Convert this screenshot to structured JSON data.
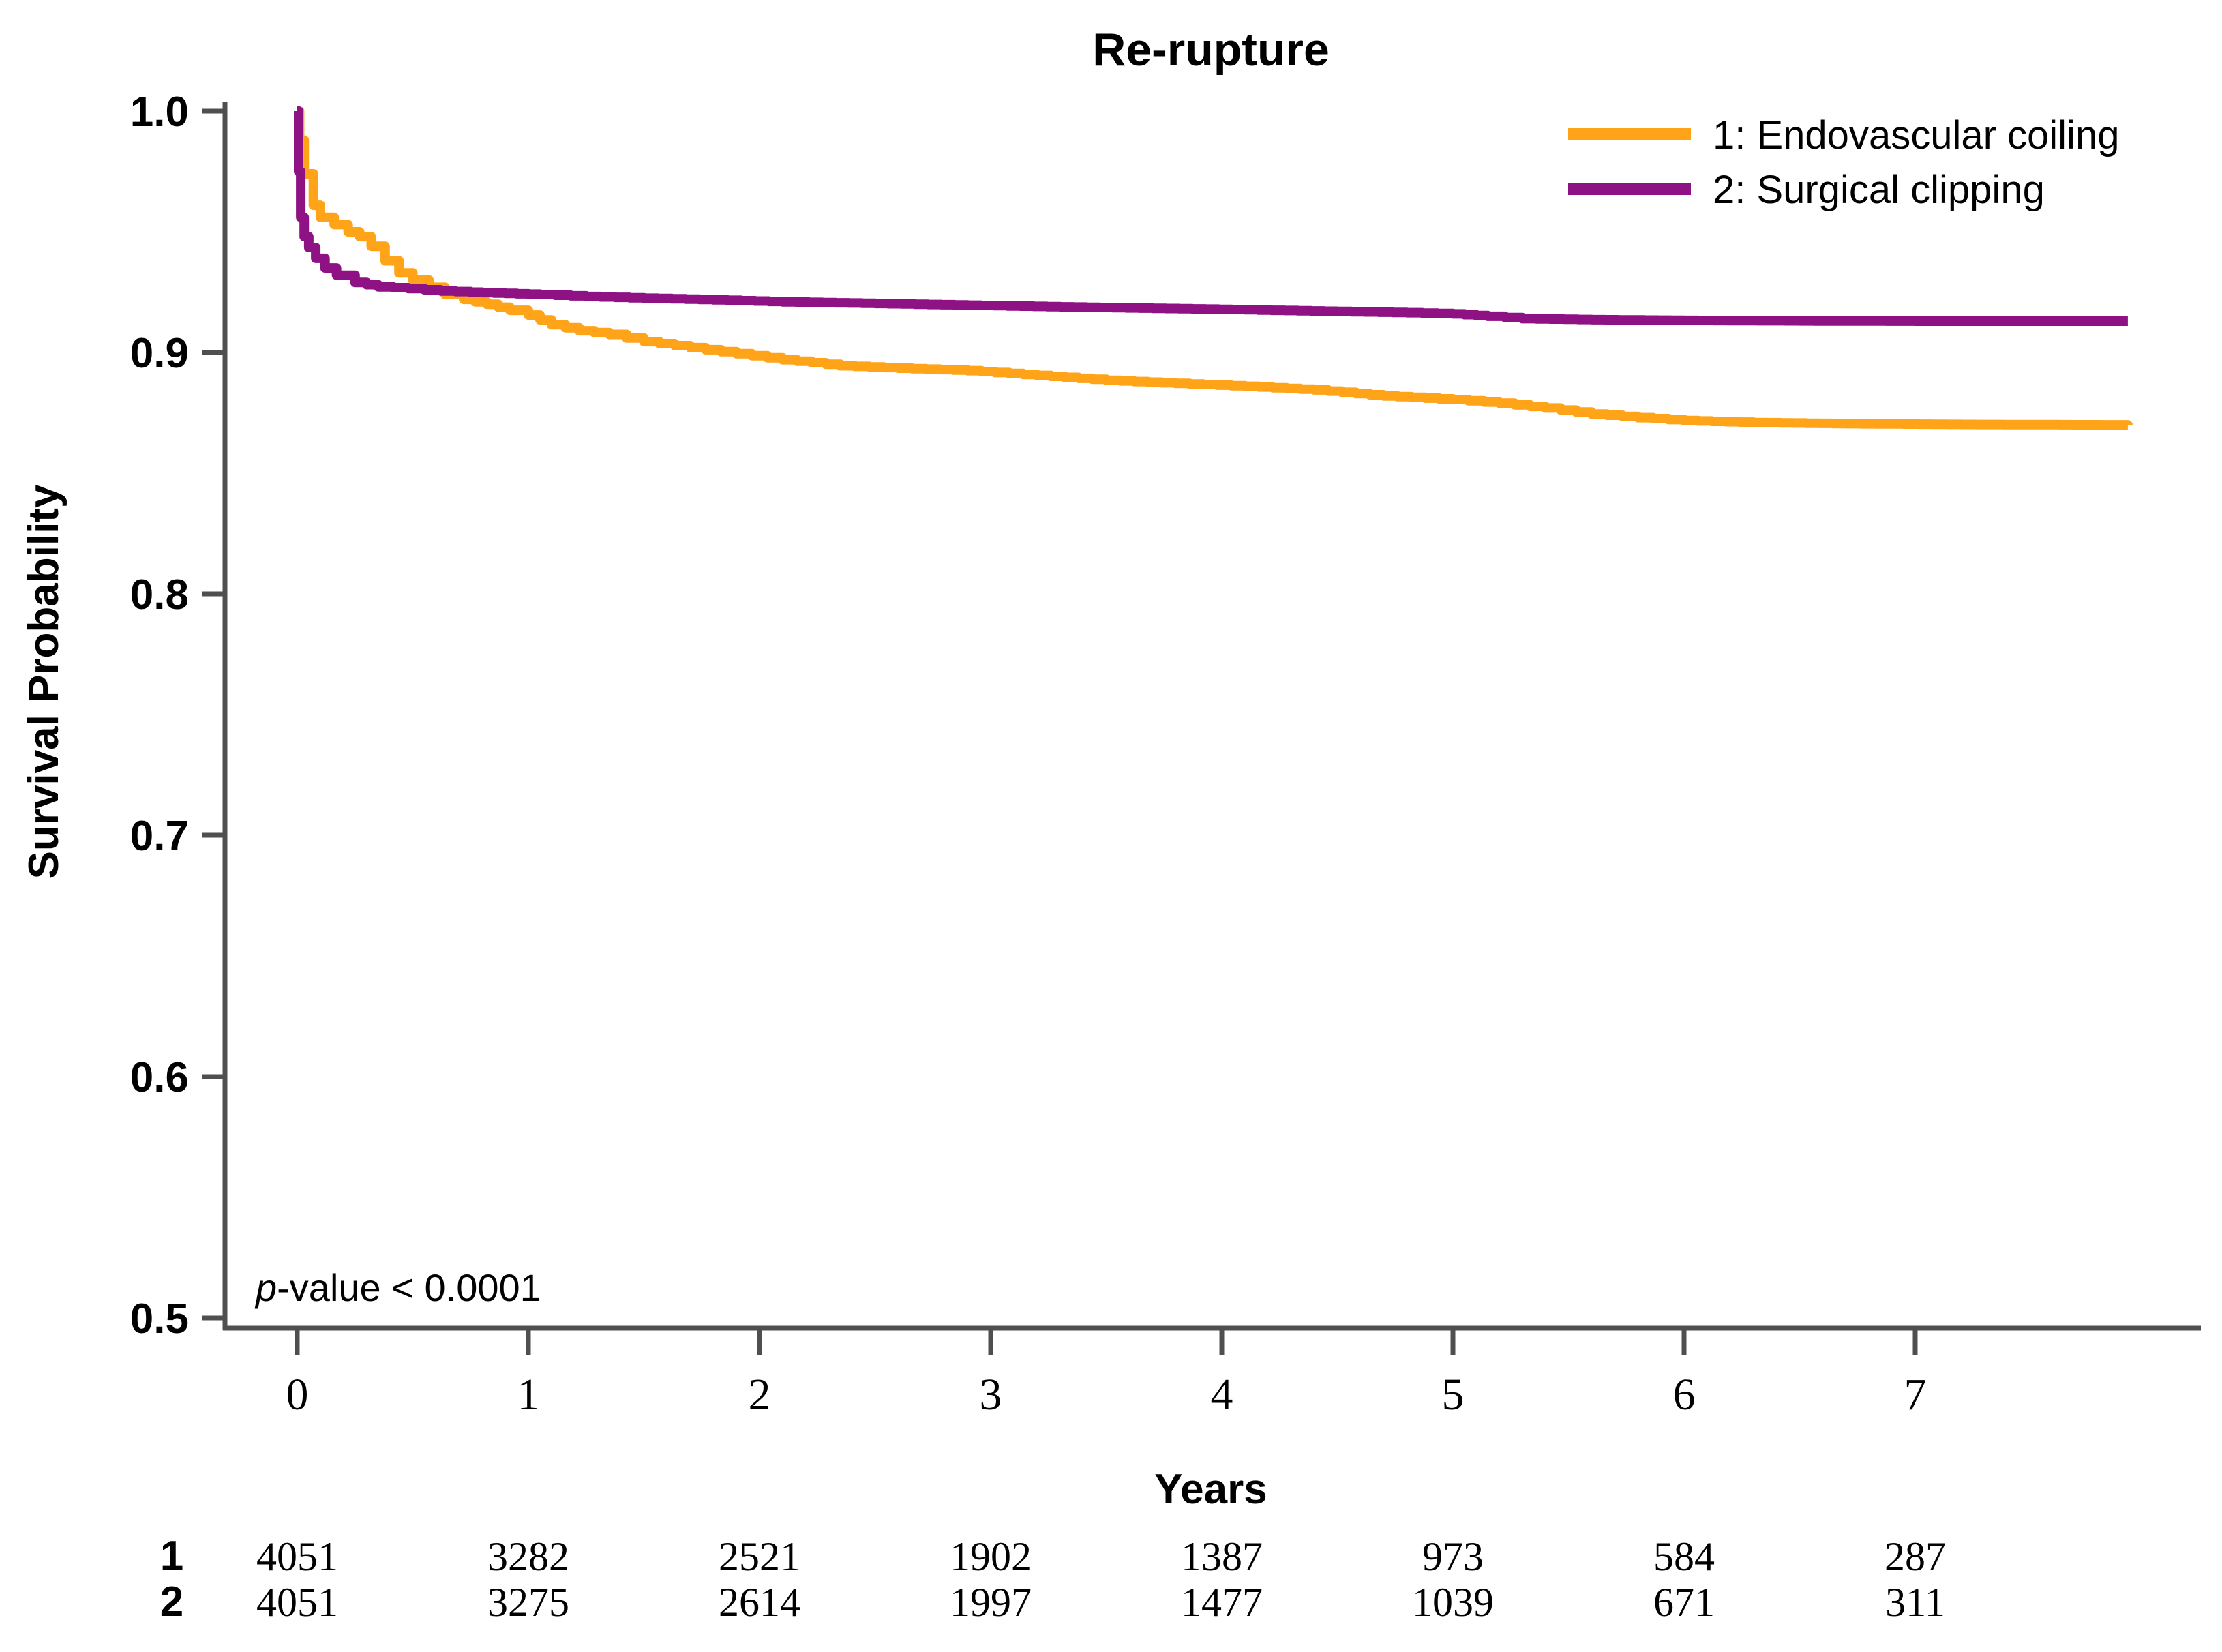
{
  "title": "Re-rupture",
  "chart_data": {
    "type": "line",
    "subtype": "kaplan-meier-step",
    "title": "Re-rupture",
    "xlabel": "Years",
    "ylabel": "Survival Probability",
    "xlim": [
      0,
      7.92
    ],
    "ylim": [
      0.5,
      1.0
    ],
    "grid": false,
    "legend_position": "top-right",
    "x_ticks": [
      0,
      1,
      2,
      3,
      4,
      5,
      6,
      7
    ],
    "y_ticks": [
      1.0,
      0.9,
      0.8,
      0.7,
      0.6,
      0.5
    ],
    "y_tick_labels": [
      "1.0",
      "0.9",
      "0.8",
      "0.7",
      "0.6",
      "0.5"
    ],
    "axis_color": "#4f4f4f",
    "p_value": {
      "symbol": "p",
      "rest": "-value < 0.0001"
    },
    "series": [
      {
        "name": "1: Endovascular coiling",
        "color": "#FFA318",
        "points": [
          [
            0,
            1.0
          ],
          [
            0.01,
            0.988
          ],
          [
            0.03,
            0.974
          ],
          [
            0.07,
            0.961
          ],
          [
            0.1,
            0.956
          ],
          [
            0.16,
            0.953
          ],
          [
            0.22,
            0.95
          ],
          [
            0.27,
            0.948
          ],
          [
            0.32,
            0.944
          ],
          [
            0.38,
            0.938
          ],
          [
            0.44,
            0.933
          ],
          [
            0.5,
            0.93
          ],
          [
            0.57,
            0.927
          ],
          [
            0.64,
            0.924
          ],
          [
            0.72,
            0.922
          ],
          [
            0.82,
            0.92
          ],
          [
            0.92,
            0.9175
          ],
          [
            1.0,
            0.9155
          ],
          [
            1.1,
            0.9115
          ],
          [
            1.22,
            0.909
          ],
          [
            1.35,
            0.9075
          ],
          [
            1.5,
            0.9045
          ],
          [
            1.7,
            0.902
          ],
          [
            1.9,
            0.8995
          ],
          [
            2.1,
            0.897
          ],
          [
            2.35,
            0.8945
          ],
          [
            2.6,
            0.8935
          ],
          [
            2.9,
            0.8925
          ],
          [
            3.2,
            0.8905
          ],
          [
            3.5,
            0.8885
          ],
          [
            3.8,
            0.8872
          ],
          [
            4.1,
            0.886
          ],
          [
            4.4,
            0.8845
          ],
          [
            4.7,
            0.882
          ],
          [
            5.0,
            0.8805
          ],
          [
            5.2,
            0.879
          ],
          [
            5.4,
            0.877
          ],
          [
            5.6,
            0.8745
          ],
          [
            5.8,
            0.873
          ],
          [
            6.0,
            0.8718
          ],
          [
            6.3,
            0.871
          ],
          [
            6.7,
            0.8705
          ],
          [
            7.2,
            0.8702
          ],
          [
            7.92,
            0.87
          ]
        ]
      },
      {
        "name": "2: Surgical clipping",
        "color": "#8E1283",
        "points": [
          [
            0,
            1.0
          ],
          [
            0.006,
            0.975
          ],
          [
            0.015,
            0.956
          ],
          [
            0.03,
            0.948
          ],
          [
            0.05,
            0.9435
          ],
          [
            0.08,
            0.939
          ],
          [
            0.12,
            0.935
          ],
          [
            0.17,
            0.932
          ],
          [
            0.25,
            0.929
          ],
          [
            0.35,
            0.9272
          ],
          [
            0.48,
            0.9265
          ],
          [
            0.62,
            0.9255
          ],
          [
            0.75,
            0.925
          ],
          [
            0.9,
            0.9245
          ],
          [
            1.05,
            0.924
          ],
          [
            1.25,
            0.9232
          ],
          [
            1.5,
            0.9225
          ],
          [
            1.8,
            0.9218
          ],
          [
            2.1,
            0.921
          ],
          [
            2.5,
            0.9203
          ],
          [
            2.9,
            0.9196
          ],
          [
            3.3,
            0.9189
          ],
          [
            3.7,
            0.9183
          ],
          [
            4.1,
            0.9177
          ],
          [
            4.5,
            0.917
          ],
          [
            4.8,
            0.9165
          ],
          [
            5.0,
            0.916
          ],
          [
            5.15,
            0.915
          ],
          [
            5.3,
            0.914
          ],
          [
            5.6,
            0.9136
          ],
          [
            6.0,
            0.9133
          ],
          [
            6.5,
            0.9131
          ],
          [
            7.0,
            0.913
          ],
          [
            7.92,
            0.913
          ]
        ]
      }
    ],
    "risk_table": {
      "times": [
        0,
        1,
        2,
        3,
        4,
        5,
        6,
        7
      ],
      "rows": [
        {
          "label": "1",
          "values": [
            "4051",
            "3282",
            "2521",
            "1902",
            "1387",
            "973",
            "584",
            "287"
          ]
        },
        {
          "label": "2",
          "values": [
            "4051",
            "3275",
            "2614",
            "1997",
            "1477",
            "1039",
            "671",
            "311"
          ]
        }
      ]
    }
  }
}
